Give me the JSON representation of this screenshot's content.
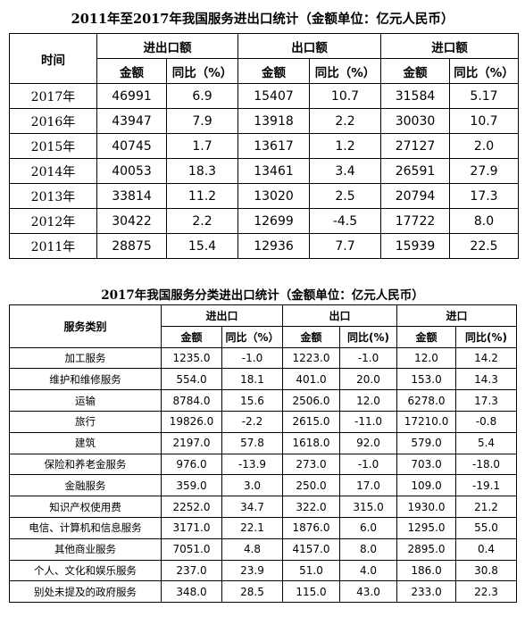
{
  "table1": {
    "title": "2011年至2017年我国服务进出口统计（金额单位：亿元人民币）",
    "header": {
      "time": "时间",
      "groups": [
        "进出口额",
        "出口额",
        "进口额"
      ],
      "amount": "金额",
      "yoy": "同比（%）"
    },
    "rows": [
      {
        "year": "2017年",
        "total": "46991",
        "total_yoy": "6.9",
        "export": "15407",
        "export_yoy": "10.7",
        "import": "31584",
        "import_yoy": "5.17"
      },
      {
        "year": "2016年",
        "total": "43947",
        "total_yoy": "7.9",
        "export": "13918",
        "export_yoy": "2.2",
        "import": "30030",
        "import_yoy": "10.7"
      },
      {
        "year": "2015年",
        "total": "40745",
        "total_yoy": "1.7",
        "export": "13617",
        "export_yoy": "1.2",
        "import": "27127",
        "import_yoy": "2.0"
      },
      {
        "year": "2014年",
        "total": "40053",
        "total_yoy": "18.3",
        "export": "13461",
        "export_yoy": "3.4",
        "import": "26591",
        "import_yoy": "27.9"
      },
      {
        "year": "2013年",
        "total": "33814",
        "total_yoy": "11.2",
        "export": "13020",
        "export_yoy": "2.5",
        "import": "20794",
        "import_yoy": "17.3"
      },
      {
        "year": "2012年",
        "total": "30422",
        "total_yoy": "2.2",
        "export": "12699",
        "export_yoy": "-4.5",
        "import": "17722",
        "import_yoy": "8.0"
      },
      {
        "year": "2011年",
        "total": "28875",
        "total_yoy": "15.4",
        "export": "12936",
        "export_yoy": "7.7",
        "import": "15939",
        "import_yoy": "22.5"
      }
    ]
  },
  "table2": {
    "title": "2017年我国服务分类进出口统计（金额单位：亿元人民币）",
    "header": {
      "category": "服务类别",
      "groups": [
        "进出口",
        "出口",
        "进口"
      ],
      "amount": "金额",
      "yoy_a": "同比（%）",
      "yoy_b": "同比(%)"
    },
    "rows": [
      {
        "cat": "加工服务",
        "total": "1235.0",
        "total_yoy": "-1.0",
        "export": "1223.0",
        "export_yoy": "-1.0",
        "import": "12.0",
        "import_yoy": "14.2"
      },
      {
        "cat": "维护和维修服务",
        "total": "554.0",
        "total_yoy": "18.1",
        "export": "401.0",
        "export_yoy": "20.0",
        "import": "153.0",
        "import_yoy": "14.3"
      },
      {
        "cat": "运输",
        "total": "8784.0",
        "total_yoy": "15.6",
        "export": "2506.0",
        "export_yoy": "12.0",
        "import": "6278.0",
        "import_yoy": "17.3"
      },
      {
        "cat": "旅行",
        "total": "19826.0",
        "total_yoy": "-2.2",
        "export": "2615.0",
        "export_yoy": "-11.0",
        "import": "17210.0",
        "import_yoy": "-0.8"
      },
      {
        "cat": "建筑",
        "total": "2197.0",
        "total_yoy": "57.8",
        "export": "1618.0",
        "export_yoy": "92.0",
        "import": "579.0",
        "import_yoy": "5.4"
      },
      {
        "cat": "保险和养老金服务",
        "total": "976.0",
        "total_yoy": "-13.9",
        "export": "273.0",
        "export_yoy": "-1.0",
        "import": "703.0",
        "import_yoy": "-18.0"
      },
      {
        "cat": "金融服务",
        "total": "359.0",
        "total_yoy": "3.0",
        "export": "250.0",
        "export_yoy": "17.0",
        "import": "109.0",
        "import_yoy": "-19.1"
      },
      {
        "cat": "知识产权使用费",
        "total": "2252.0",
        "total_yoy": "34.7",
        "export": "322.0",
        "export_yoy": "315.0",
        "import": "1930.0",
        "import_yoy": "21.2"
      },
      {
        "cat": "电信、计算机和信息服务",
        "total": "3171.0",
        "total_yoy": "22.1",
        "export": "1876.0",
        "export_yoy": "6.0",
        "import": "1295.0",
        "import_yoy": "55.0"
      },
      {
        "cat": "其他商业服务",
        "total": "7051.0",
        "total_yoy": "4.8",
        "export": "4157.0",
        "export_yoy": "8.0",
        "import": "2895.0",
        "import_yoy": "0.4"
      },
      {
        "cat": "个人、文化和娱乐服务",
        "total": "237.0",
        "total_yoy": "23.9",
        "export": "51.0",
        "export_yoy": "4.0",
        "import": "186.0",
        "import_yoy": "30.8"
      },
      {
        "cat": "别处未提及的政府服务",
        "total": "348.0",
        "total_yoy": "28.5",
        "export": "115.0",
        "export_yoy": "43.0",
        "import": "233.0",
        "import_yoy": "22.3"
      }
    ]
  }
}
